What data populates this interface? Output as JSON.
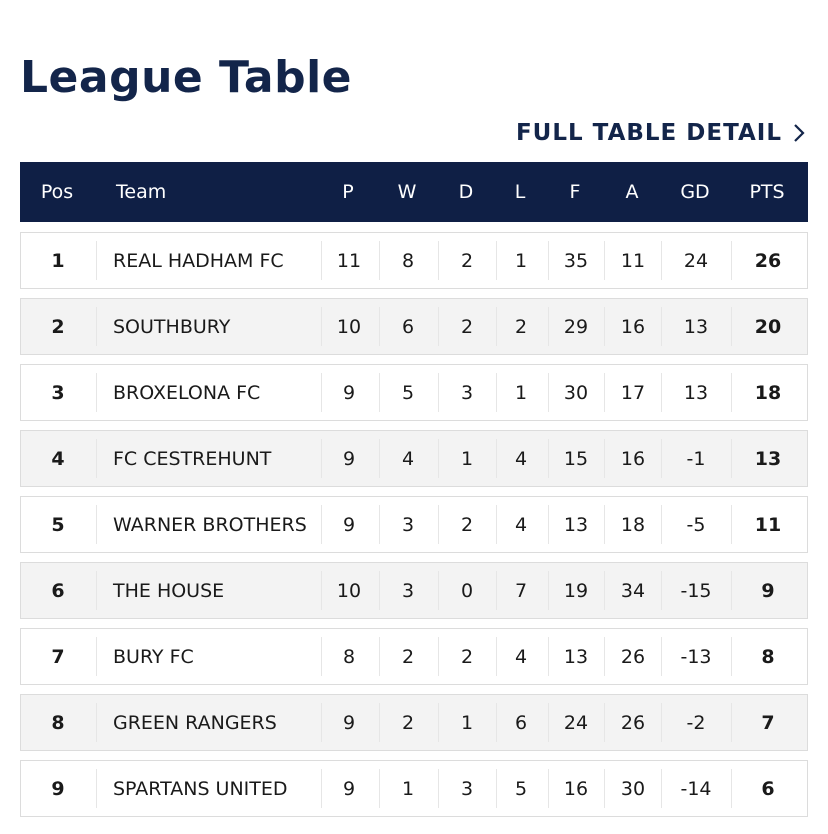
{
  "header": {
    "title": "League Table",
    "link": "FULL TABLE DETAIL"
  },
  "table": {
    "columns": [
      "Pos",
      "Team",
      "P",
      "W",
      "D",
      "L",
      "F",
      "A",
      "GD",
      "PTS"
    ],
    "rows": [
      [
        1,
        "REAL HADHAM FC",
        11,
        8,
        2,
        1,
        35,
        11,
        24,
        26
      ],
      [
        2,
        "SOUTHBURY",
        10,
        6,
        2,
        2,
        29,
        16,
        13,
        20
      ],
      [
        3,
        "BROXELONA FC",
        9,
        5,
        3,
        1,
        30,
        17,
        13,
        18
      ],
      [
        4,
        "FC CESTREHUNT",
        9,
        4,
        1,
        4,
        15,
        16,
        -1,
        13
      ],
      [
        5,
        "WARNER BROTHERS",
        9,
        3,
        2,
        4,
        13,
        18,
        -5,
        11
      ],
      [
        6,
        "THE HOUSE",
        10,
        3,
        0,
        7,
        19,
        34,
        -15,
        9
      ],
      [
        7,
        "BURY FC",
        8,
        2,
        2,
        4,
        13,
        26,
        -13,
        8
      ],
      [
        8,
        "GREEN RANGERS",
        9,
        2,
        1,
        6,
        24,
        26,
        -2,
        7
      ],
      [
        9,
        "SPARTANS UNITED",
        9,
        1,
        3,
        5,
        16,
        30,
        -14,
        6
      ]
    ]
  }
}
